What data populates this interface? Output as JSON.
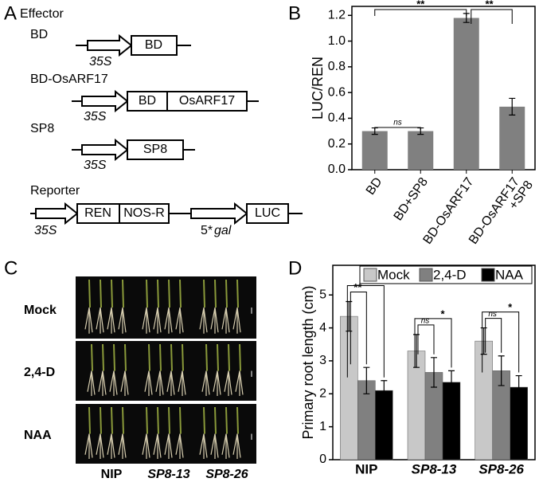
{
  "panel_labels": [
    "A",
    "B",
    "C",
    "D"
  ],
  "diagram": {
    "effector_title": "Effector",
    "constructs": [
      {
        "name": "BD",
        "promoter": "35S",
        "boxes": [
          "BD"
        ]
      },
      {
        "name": "BD-OsARF17",
        "promoter": "35S",
        "boxes": [
          "BD",
          "OsARF17"
        ]
      },
      {
        "name": "SP8",
        "promoter": "35S",
        "boxes": [
          "SP8"
        ]
      }
    ],
    "reporter_title": "Reporter",
    "reporter": {
      "promoter": "35S",
      "boxes": [
        "REN",
        "NOS-R"
      ],
      "promoter2": [
        "5*",
        "gal"
      ],
      "box2": "LUC"
    }
  },
  "photo": {
    "rows": [
      "Mock",
      "2,4-D",
      "NAA"
    ],
    "columns": [
      "NIP",
      "SP8-13",
      "SP8-26"
    ]
  },
  "chart_data": [
    {
      "type": "bar",
      "ylabel": "LUC/REN",
      "categories": [
        [
          "BD"
        ],
        [
          "BD+SP8"
        ],
        [
          "BD-OsARF17"
        ],
        [
          "BD-OsARF17",
          "+SP8"
        ]
      ],
      "values": [
        0.3,
        0.3,
        1.18,
        0.49
      ],
      "errors": [
        0.025,
        0.025,
        0.035,
        0.065
      ],
      "color": "#808080",
      "ylim": [
        0,
        1.27
      ],
      "yticks": [
        {
          "value": 0,
          "label": "0.0"
        },
        0.2,
        0.4,
        0.6,
        0.8,
        {
          "value": 1,
          "label": "1.0"
        },
        1.2
      ],
      "annotations": [
        "**",
        "**",
        "ns"
      ]
    },
    {
      "type": "grouped_bar",
      "ylabel": "Primary root length (cm)",
      "categories": [
        "NIP",
        "SP8-13",
        "SP8-26"
      ],
      "series": [
        {
          "name": "Mock",
          "color": "#c8c8c8",
          "values": [
            4.35,
            3.3,
            3.6
          ],
          "errors": [
            0.45,
            0.5,
            0.4
          ]
        },
        {
          "name": "2,4-D",
          "color": "#808080",
          "values": [
            2.4,
            2.65,
            2.7
          ],
          "errors": [
            0.4,
            0.45,
            0.45
          ]
        },
        {
          "name": "NAA",
          "color": "#000000",
          "values": [
            2.1,
            2.35,
            2.2
          ],
          "errors": [
            0.3,
            0.35,
            0.35
          ]
        }
      ],
      "ylim": [
        0,
        5.9
      ],
      "yticks": [
        0,
        1,
        2,
        3,
        4,
        5
      ],
      "legend": "top",
      "annotations": [
        "**",
        "**",
        "ns",
        "*",
        "ns",
        "*"
      ]
    }
  ]
}
